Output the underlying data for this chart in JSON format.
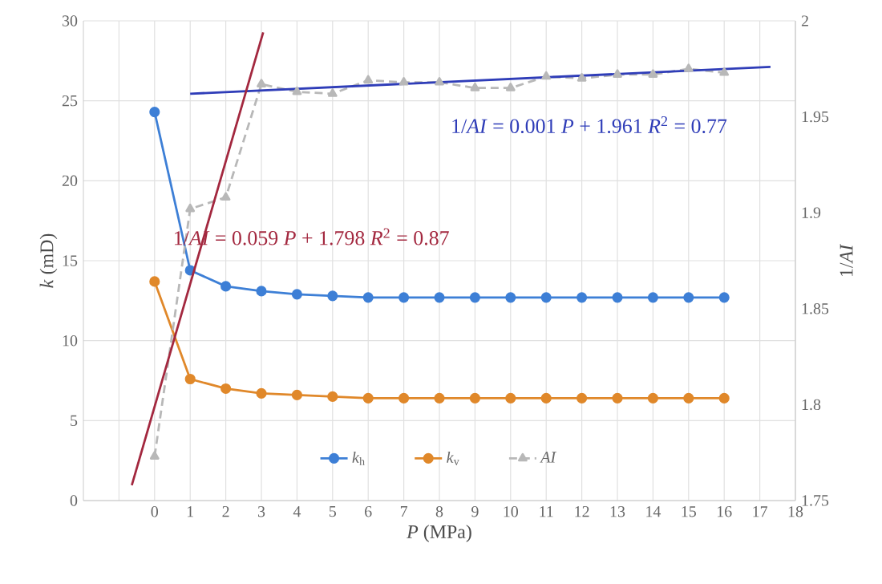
{
  "chart_data": {
    "type": "line",
    "xlabel": "*P* (MPa)",
    "ylabel": "*k* (mD)",
    "y2label": "1/*AI*",
    "xlim": [
      -2,
      18
    ],
    "xticks": [
      {
        "value": -1,
        "label": null
      },
      0,
      1,
      2,
      3,
      4,
      5,
      6,
      7,
      8,
      9,
      10,
      11,
      12,
      13,
      14,
      15,
      16,
      17,
      18
    ],
    "ylim": [
      0,
      30
    ],
    "yticks": [
      0,
      5,
      10,
      15,
      20,
      25,
      30
    ],
    "y2lim": [
      1.75,
      2
    ],
    "y2ticks": [
      1.75,
      1.8,
      1.85,
      1.9,
      1.95,
      2
    ],
    "x": [
      0,
      1,
      2,
      3,
      4,
      5,
      6,
      7,
      8,
      9,
      10,
      11,
      12,
      13,
      14,
      15,
      16
    ],
    "series": [
      {
        "name": "*k*$_{h}$",
        "color": "#3d7fd6",
        "values": [
          24.3,
          14.4,
          13.4,
          13.1,
          12.9,
          12.8,
          12.7,
          12.7,
          12.7,
          12.7,
          12.7,
          12.7,
          12.7,
          12.7,
          12.7,
          12.7,
          12.7
        ]
      },
      {
        "name": "*k*$_{v}$",
        "color": "#e0882a",
        "values": [
          13.7,
          7.6,
          7.0,
          6.7,
          6.6,
          6.5,
          6.4,
          6.4,
          6.4,
          6.4,
          6.4,
          6.4,
          6.4,
          6.4,
          6.4,
          6.4,
          6.4
        ]
      },
      {
        "name": "*AI*",
        "color": "#b8b8b8",
        "axis": "y2",
        "marker": "triangle",
        "line_style": "dashed",
        "values": [
          1.773,
          1.902,
          1.908,
          1.967,
          1.963,
          1.962,
          1.969,
          1.968,
          1.968,
          1.965,
          1.965,
          1.971,
          1.97,
          1.972,
          1.972,
          1.975,
          1.973
        ]
      },
      {
        "color": "#2f3db8",
        "axis": "y2",
        "marker": "none",
        "x": [
          1,
          17.3
        ],
        "values": [
          1.962,
          1.976
        ]
      },
      {
        "color": "#a3283f",
        "axis": "y2",
        "marker": "none",
        "x": [
          -0.64,
          3.05
        ],
        "values": [
          1.758,
          1.994
        ]
      }
    ],
    "annotations": [
      "1/*AI* = 0.001 *P* + 1.961  *R*$^{2}$ = 0.77",
      "1/*AI* = 0.059 *P* + 1.798  *R*$^{2}$ = 0.87"
    ],
    "grid": true,
    "legend": "bottom",
    "marker": "circle",
    "line_style": "solid"
  }
}
